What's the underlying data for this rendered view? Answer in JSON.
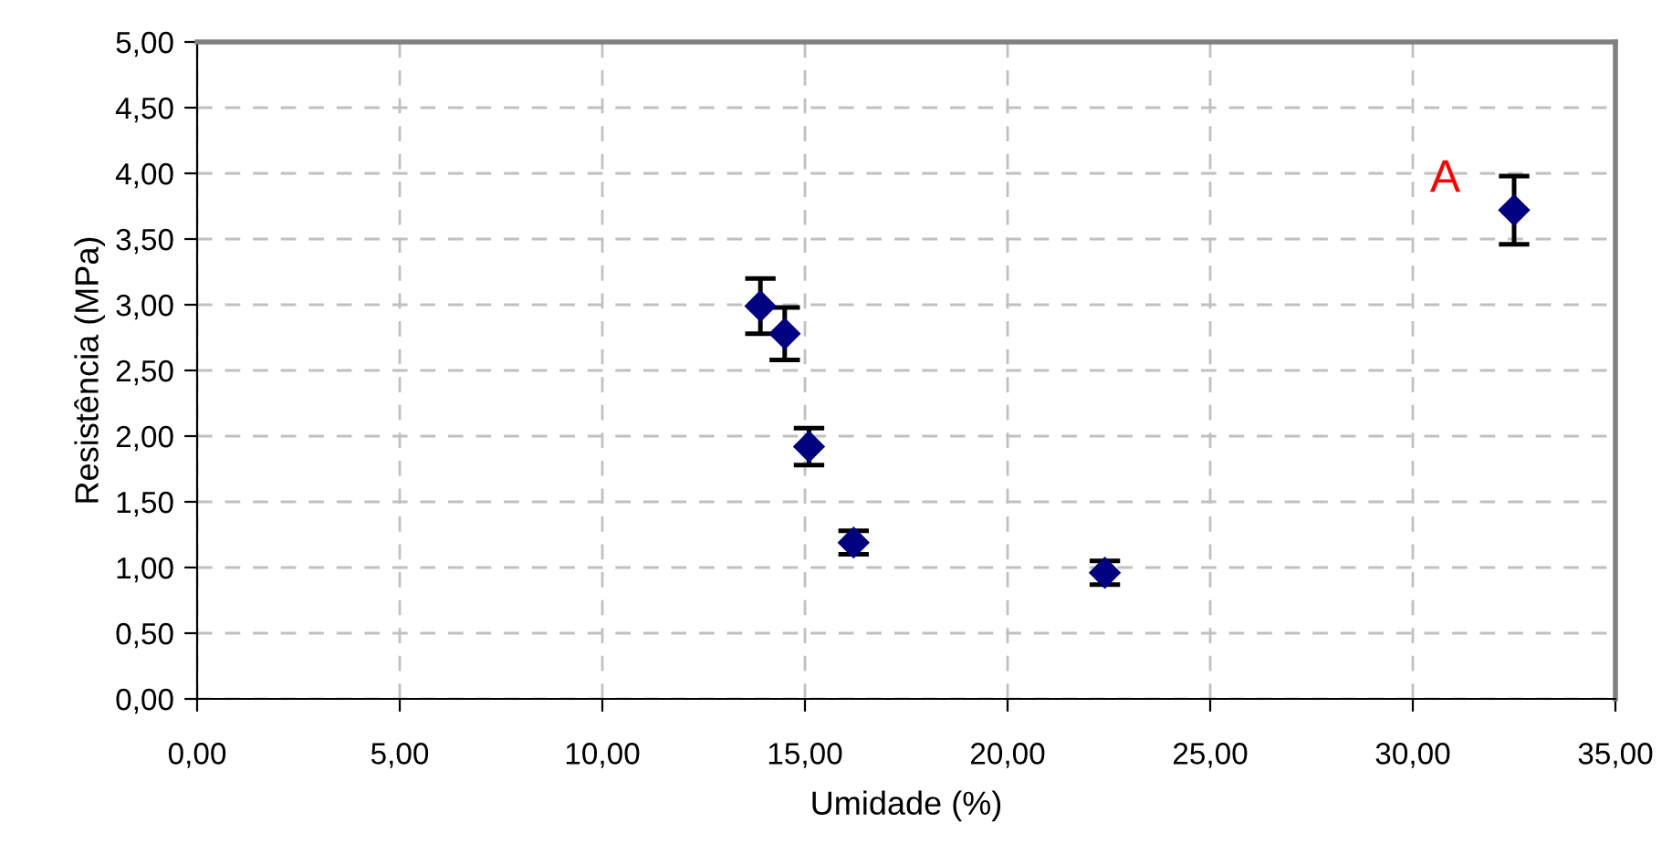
{
  "chart_data": {
    "type": "scatter",
    "xlabel": "Umidade (%)",
    "ylabel": "Resistência (MPa)",
    "x": [
      13.9,
      14.5,
      15.1,
      16.2,
      22.4,
      32.5
    ],
    "series": [
      {
        "color": "#000080",
        "values": [
          2.99,
          2.78,
          1.92,
          1.19,
          0.96,
          3.72
        ],
        "errors": [
          0.21,
          0.2,
          0.14,
          0.09,
          0.09,
          0.26
        ]
      }
    ],
    "marker": "diamond",
    "grid": true,
    "legend": false,
    "xlim": [
      0,
      35
    ],
    "xticks": [
      {
        "value": 0,
        "label": "0,00"
      },
      {
        "value": 5,
        "label": "5,00"
      },
      {
        "value": 10,
        "label": "10,00"
      },
      {
        "value": 15,
        "label": "15,00"
      },
      {
        "value": 20,
        "label": "20,00"
      },
      {
        "value": 25,
        "label": "25,00"
      },
      {
        "value": 30,
        "label": "30,00"
      },
      {
        "value": 35,
        "label": "35,00"
      }
    ],
    "ylim": [
      0,
      5
    ],
    "yticks": [
      {
        "value": 0,
        "label": "0,00"
      },
      {
        "value": 0.5,
        "label": "0,50"
      },
      {
        "value": 1,
        "label": "1,00"
      },
      {
        "value": 1.5,
        "label": "1,50"
      },
      {
        "value": 2,
        "label": "2,00"
      },
      {
        "value": 2.5,
        "label": "2,50"
      },
      {
        "value": 3,
        "label": "3,00"
      },
      {
        "value": 3.5,
        "label": "3,50"
      },
      {
        "value": 4,
        "label": "4,00"
      },
      {
        "value": 4.5,
        "label": "4,50"
      },
      {
        "value": 5,
        "label": "5,00"
      }
    ],
    "annotations": [
      "A"
    ]
  }
}
